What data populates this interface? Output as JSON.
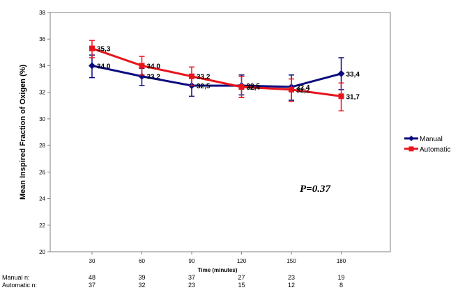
{
  "chart_data": {
    "type": "line",
    "title": "",
    "xlabel": "Time (minutes)",
    "ylabel": "Mean Inspired Fraction of Oxigen (%)",
    "ylim": [
      20,
      38
    ],
    "yticks": [
      20,
      22,
      24,
      26,
      28,
      30,
      32,
      34,
      36,
      38
    ],
    "x": [
      30,
      60,
      90,
      120,
      150,
      180
    ],
    "x_tick_labels": [
      "30",
      "60",
      "90",
      "120",
      "150",
      "180"
    ],
    "grid": false,
    "legend": "right",
    "series": [
      {
        "name": "Manual",
        "color": "#0a0a80",
        "marker": "diamond",
        "values": [
          34.0,
          33.2,
          32.5,
          32.5,
          32.4,
          33.4
        ],
        "labels": [
          "34,0",
          "33,2",
          "32,5",
          "32,5",
          "32,4",
          "33,4"
        ],
        "err_low": [
          33.1,
          32.5,
          31.7,
          31.8,
          31.4,
          32.2
        ],
        "err_high": [
          34.8,
          33.8,
          33.3,
          33.3,
          33.3,
          34.6
        ]
      },
      {
        "name": "Automatic",
        "color": "#e8141c",
        "marker": "square",
        "values": [
          35.3,
          34.0,
          33.2,
          32.4,
          32.2,
          31.7
        ],
        "labels": [
          "35,3",
          "34,0",
          "33,2",
          "32,4",
          "32,2",
          "31,7"
        ],
        "err_low": [
          34.6,
          33.3,
          32.5,
          31.6,
          31.3,
          30.6
        ],
        "err_high": [
          35.9,
          34.7,
          33.9,
          33.2,
          33.0,
          32.7
        ]
      }
    ],
    "annotation": "P=0.37",
    "n_table": [
      {
        "label": "Manual n:",
        "values": [
          "48",
          "39",
          "37",
          "27",
          "23",
          "19"
        ]
      },
      {
        "label": "Automatic n:",
        "values": [
          "37",
          "32",
          "23",
          "15",
          "12",
          "8"
        ]
      }
    ]
  }
}
